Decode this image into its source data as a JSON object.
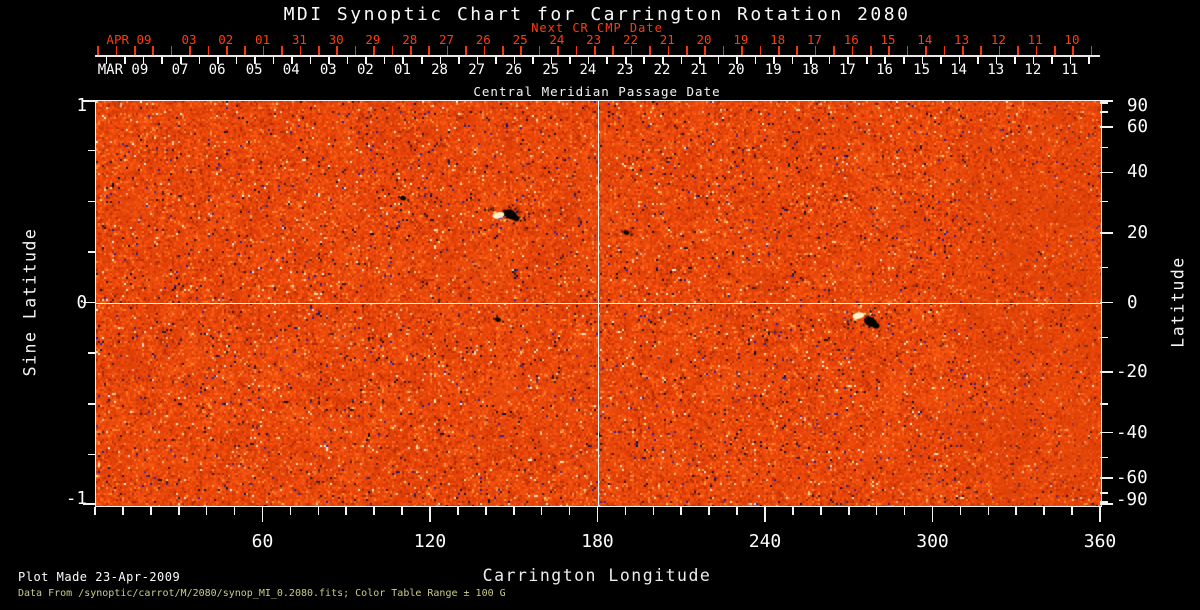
{
  "title": "MDI Synoptic Chart for Carrington Rotation 2080",
  "top_axis": {
    "next_cr_label": "Next CR CMP Date",
    "next_cr_month": "APR 09",
    "next_cr_days": [
      "03",
      "02",
      "01",
      "31",
      "30",
      "29",
      "28",
      "27",
      "26",
      "25",
      "24",
      "23",
      "22",
      "21",
      "20",
      "19",
      "18",
      "17",
      "16",
      "15",
      "14",
      "13",
      "12",
      "11",
      "10"
    ],
    "cmp_month": "MAR 09",
    "cmp_days": [
      "07",
      "06",
      "05",
      "04",
      "03",
      "02",
      "01",
      "28",
      "27",
      "26",
      "25",
      "24",
      "23",
      "22",
      "21",
      "20",
      "19",
      "18",
      "17",
      "16",
      "15",
      "14",
      "13",
      "12",
      "11"
    ],
    "cmp_axis_label": "Central Meridian Passage Date"
  },
  "axes": {
    "left": {
      "label": "Sine Latitude",
      "tick_labels": [
        "1",
        "0",
        "-1"
      ],
      "minor_sines": [
        0.75,
        0.5,
        0.25,
        -0.25,
        -0.5,
        -0.75
      ]
    },
    "right": {
      "label": "Latitude",
      "labeled_degrees": [
        90,
        60,
        40,
        20,
        0,
        -20,
        -40,
        -60,
        -90
      ],
      "minor_degrees": [
        80,
        70,
        50,
        30,
        10,
        -10,
        -30,
        -50,
        -70,
        -80
      ]
    },
    "bottom": {
      "label": "Carrington Longitude",
      "tick_labels": [
        "60",
        "120",
        "180",
        "240",
        "300",
        "360"
      ],
      "minor_step_degrees": 10
    }
  },
  "footer": {
    "line1": "Plot Made 23-Apr-2009",
    "line2": "Data From /synoptic/carrot/M/2080/synop_MI_0.2080.fits; Color Table Range ± 100 G"
  },
  "colors": {
    "background": "#000000",
    "axis_white": "#f2f2f2",
    "next_cr_red": "#fe3c0e",
    "footer_yellow": "#cbcb8b",
    "magnetogram_base": "#e8430a"
  },
  "chart_data": {
    "type": "heatmap",
    "title": "MDI Synoptic Chart for Carrington Rotation 2080",
    "xlabel": "Carrington Longitude",
    "x_range": [
      0,
      360
    ],
    "x_major_ticks": [
      60,
      120,
      180,
      240,
      300,
      360
    ],
    "x_minor_step": 10,
    "ylabel_left": "Sine Latitude",
    "y_range_sine": [
      -1,
      1
    ],
    "left_tick_values": [
      1,
      0,
      -1
    ],
    "ylabel_right": "Latitude",
    "right_tick_values": [
      90,
      60,
      40,
      20,
      0,
      -20,
      -40,
      -60,
      -90
    ],
    "y_scale": "sine-of-latitude (equal area)",
    "colormap": "solar line-of-sight magnetogram, saturated red-orange; Color Table Range ± 100 G; bright cream/yellow = positive flux, black/blue = negative flux",
    "grid": "off",
    "reference_lines": {
      "vertical_longitude": 180,
      "horizontal_sine_latitude": 0
    },
    "top_axis_dates": {
      "central_meridian_passage": "MAR 09 2009 at longitude 0 (left) decreasing to FEB 11 2009 at longitude 360 (right)",
      "next_cr_cmp": "APR 2009: 03 decreasing through MAR 10 left to right"
    },
    "notable_features": [
      {
        "longitude": 147,
        "sine_latitude": 0.44,
        "type": "bipolar-active-region",
        "description": "bright cream plage patch beside compact black negative-polarity core, northern hemisphere"
      },
      {
        "longitude": 276,
        "sine_latitude": -0.09,
        "type": "bipolar-active-region",
        "description": "dark black core with bright yellow specks just north-west of it, near equator"
      }
    ],
    "small_spots": [
      {
        "longitude": 110,
        "sine_latitude": 0.52
      },
      {
        "longitude": 190,
        "sine_latitude": 0.35
      },
      {
        "longitude": 144,
        "sine_latitude": -0.08
      }
    ]
  }
}
